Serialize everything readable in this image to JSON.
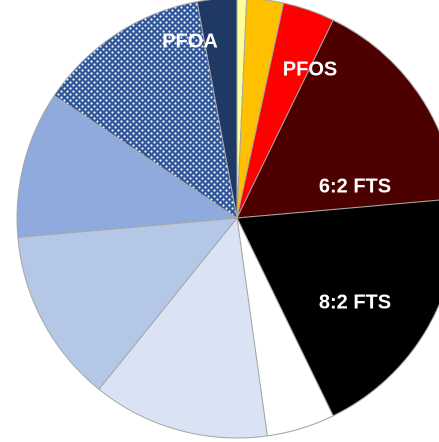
{
  "chart_data": {
    "type": "pie",
    "categories": [
      null,
      null,
      "PFOS",
      "6:2 FTS",
      "8:2 FTS",
      null,
      null,
      null,
      null,
      null,
      "PFOA"
    ],
    "values": [
      0.7,
      2.7,
      3.8,
      16.4,
      19.2,
      5.0,
      13.0,
      12.8,
      10.8,
      12.7,
      2.9
    ],
    "colors": [
      "#ffff99",
      "#ffc000",
      "#ff0000",
      "#4d0000",
      "#000000",
      "#ffffff",
      "#dae3f3",
      "#b4c7e7",
      "#8faadc",
      "#2f5597",
      "#1f3864"
    ],
    "dotted": [
      9
    ]
  }
}
